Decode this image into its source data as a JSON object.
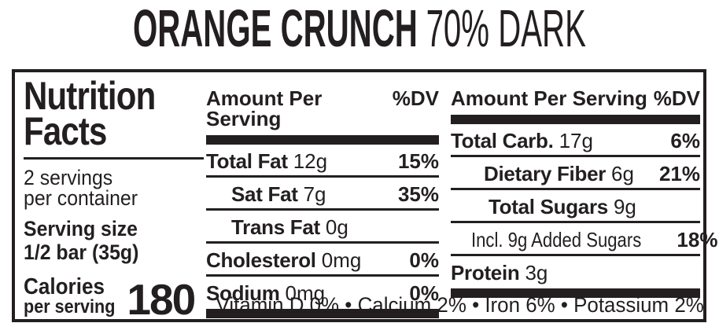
{
  "title": {
    "product": "ORANGE CRUNCH",
    "variant": "70% DARK"
  },
  "panel": {
    "heading_line1": "Nutrition",
    "heading_line2": "Facts",
    "servings_line1": "2 servings",
    "servings_line2": "per container",
    "serving_size_label": "Serving size",
    "serving_size_value": "1/2 bar (35g)",
    "calories_label_line1": "Calories",
    "calories_label_line2": "per serving",
    "calories_value": "180",
    "col1": {
      "header_label": "Amount Per Serving",
      "header_dv": "%DV",
      "rows": [
        {
          "label": "Total Fat",
          "value": "12g",
          "dv": "15%"
        },
        {
          "label": "Sat Fat",
          "value": "7g",
          "dv": "35%"
        },
        {
          "label": "Trans Fat",
          "value": "0g",
          "dv": ""
        },
        {
          "label": "Cholesterol",
          "value": "0mg",
          "dv": "0%"
        },
        {
          "label": "Sodium",
          "value": "0mg",
          "dv": "0%"
        }
      ]
    },
    "col2": {
      "header_label": "Amount Per Serving",
      "header_dv": "%DV",
      "rows": [
        {
          "label": "Total Carb.",
          "value": "17g",
          "dv": "6%"
        },
        {
          "label": "Dietary Fiber",
          "value": "6g",
          "dv": "21%"
        },
        {
          "label": "Total Sugars",
          "value": "9g",
          "dv": ""
        },
        {
          "label": "Incl. 9g Added Sugars",
          "value": "",
          "dv": "18%"
        },
        {
          "label": "Protein",
          "value": "3g",
          "dv": ""
        }
      ]
    },
    "footer": "Vitamin D 0% • Calcium 2% • Iron 6% • Potassium 2%"
  },
  "colors": {
    "ink": "#231f20",
    "background": "#ffffff"
  }
}
